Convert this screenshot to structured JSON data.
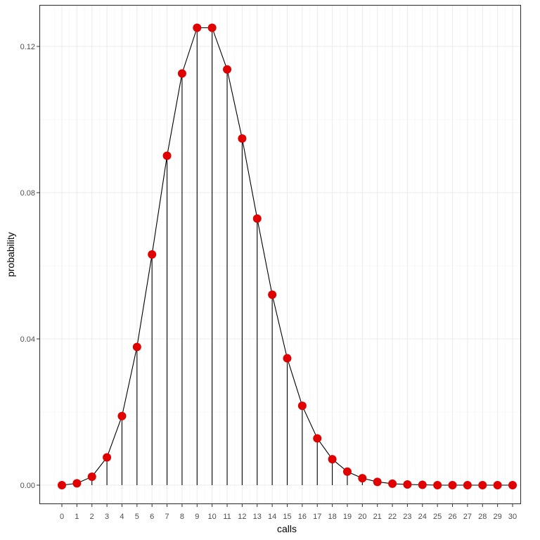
{
  "chart_data": {
    "type": "line",
    "title": "",
    "xlabel": "calls",
    "ylabel": "probability",
    "x": [
      0,
      1,
      2,
      3,
      4,
      5,
      6,
      7,
      8,
      9,
      10,
      11,
      12,
      13,
      14,
      15,
      16,
      17,
      18,
      19,
      20,
      21,
      22,
      23,
      24,
      25,
      26,
      27,
      28,
      29,
      30
    ],
    "values": [
      0.0,
      0.0005,
      0.0023,
      0.0076,
      0.0189,
      0.0378,
      0.0631,
      0.0901,
      0.1126,
      0.1251,
      0.1251,
      0.1137,
      0.0948,
      0.0729,
      0.0521,
      0.0347,
      0.0217,
      0.0128,
      0.0071,
      0.0037,
      0.0019,
      0.0009,
      0.0004,
      0.0002,
      0.0001,
      0.0,
      0.0,
      0.0,
      0.0,
      0.0,
      0.0
    ],
    "xticks": [
      "0",
      "1",
      "2",
      "3",
      "4",
      "5",
      "6",
      "7",
      "8",
      "9",
      "10",
      "11",
      "12",
      "13",
      "14",
      "15",
      "16",
      "17",
      "18",
      "19",
      "20",
      "21",
      "22",
      "23",
      "24",
      "25",
      "26",
      "27",
      "28",
      "29",
      "30"
    ],
    "yticks": [
      "0.00",
      "0.04",
      "0.08",
      "0.12"
    ],
    "ytick_values": [
      0,
      0.04,
      0.08,
      0.12
    ],
    "ylim": [
      -0.0047,
      0.131
    ],
    "xlim": [
      -1.5,
      31.5
    ],
    "grid": true,
    "legend": null,
    "style": {
      "point_color": "#e00000",
      "line_color": "#000000",
      "segment_color": "#000000",
      "grid_major_color": "#ebebeb",
      "grid_minor_color": "#f4f4f4",
      "panel_border_color": "#333333"
    }
  }
}
